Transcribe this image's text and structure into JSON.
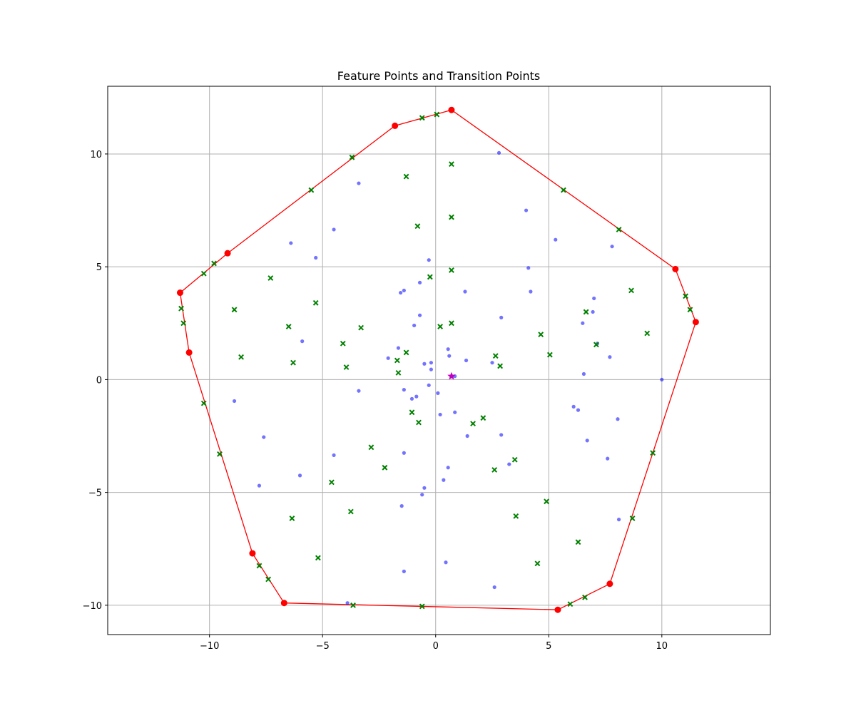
{
  "chart_data": {
    "type": "scatter",
    "title": "Feature Points and Transition Points",
    "xlabel": "",
    "ylabel": "",
    "xlim": [
      -14.5,
      14.8
    ],
    "ylim": [
      -11.3,
      13.0
    ],
    "xticks": [
      -10,
      -5,
      0,
      5,
      10
    ],
    "yticks": [
      -10,
      -5,
      0,
      5,
      10
    ],
    "grid": true,
    "colors": {
      "hull": "#ff0000",
      "feature_points": "#0000ff",
      "transition_points": "#008000",
      "centroid": "#bf00bf",
      "grid": "#b0b0b0"
    },
    "hull": [
      [
        0.7,
        11.95
      ],
      [
        -1.8,
        11.25
      ],
      [
        -9.2,
        5.6
      ],
      [
        -11.3,
        3.85
      ],
      [
        -10.9,
        1.2
      ],
      [
        -8.1,
        -7.7
      ],
      [
        -6.7,
        -9.9
      ],
      [
        5.4,
        -10.2
      ],
      [
        7.7,
        -9.05
      ],
      [
        11.5,
        2.55
      ],
      [
        10.6,
        4.9
      ],
      [
        0.7,
        11.95
      ]
    ],
    "feature_points": [
      [
        2.8,
        10.05
      ],
      [
        -3.4,
        8.7
      ],
      [
        -4.5,
        6.65
      ],
      [
        4.0,
        7.5
      ],
      [
        5.3,
        6.2
      ],
      [
        -6.4,
        6.05
      ],
      [
        -5.3,
        5.4
      ],
      [
        -0.3,
        5.3
      ],
      [
        4.1,
        4.95
      ],
      [
        7.8,
        5.9
      ],
      [
        -1.4,
        3.95
      ],
      [
        -1.55,
        3.85
      ],
      [
        -0.7,
        4.3
      ],
      [
        1.3,
        3.9
      ],
      [
        4.2,
        3.9
      ],
      [
        7.0,
        3.6
      ],
      [
        -0.7,
        2.85
      ],
      [
        2.9,
        2.75
      ],
      [
        -0.95,
        2.4
      ],
      [
        6.5,
        2.5
      ],
      [
        6.95,
        3.0
      ],
      [
        -5.9,
        1.7
      ],
      [
        7.15,
        1.6
      ],
      [
        -2.1,
        0.95
      ],
      [
        -1.65,
        1.4
      ],
      [
        0.6,
        1.05
      ],
      [
        0.55,
        1.35
      ],
      [
        1.35,
        0.85
      ],
      [
        2.5,
        0.75
      ],
      [
        7.7,
        1.0
      ],
      [
        -0.5,
        0.7
      ],
      [
        -0.2,
        0.75
      ],
      [
        -0.2,
        0.45
      ],
      [
        0.85,
        0.15
      ],
      [
        6.55,
        0.25
      ],
      [
        10.0,
        0.0
      ],
      [
        -0.3,
        -0.25
      ],
      [
        -1.4,
        -0.45
      ],
      [
        -3.4,
        -0.5
      ],
      [
        0.1,
        -0.6
      ],
      [
        -0.85,
        -0.75
      ],
      [
        -1.05,
        -0.85
      ],
      [
        -8.9,
        -0.95
      ],
      [
        6.1,
        -1.2
      ],
      [
        6.3,
        -1.35
      ],
      [
        0.85,
        -1.45
      ],
      [
        0.2,
        -1.55
      ],
      [
        8.05,
        -1.75
      ],
      [
        2.9,
        -2.45
      ],
      [
        1.4,
        -2.5
      ],
      [
        -7.6,
        -2.55
      ],
      [
        6.7,
        -2.7
      ],
      [
        -1.4,
        -3.25
      ],
      [
        -4.5,
        -3.35
      ],
      [
        7.6,
        -3.5
      ],
      [
        3.25,
        -3.75
      ],
      [
        0.55,
        -3.9
      ],
      [
        -6.0,
        -4.25
      ],
      [
        0.35,
        -4.45
      ],
      [
        -7.8,
        -4.7
      ],
      [
        -0.5,
        -4.8
      ],
      [
        -0.6,
        -5.1
      ],
      [
        -1.5,
        -5.6
      ],
      [
        8.1,
        -6.2
      ],
      [
        0.45,
        -8.1
      ],
      [
        -1.4,
        -8.5
      ],
      [
        2.6,
        -9.2
      ],
      [
        -3.9,
        -9.9
      ]
    ],
    "transition_points": [
      [
        0.05,
        11.75
      ],
      [
        -0.6,
        11.6
      ],
      [
        -3.7,
        9.85
      ],
      [
        0.7,
        9.55
      ],
      [
        -1.3,
        9.0
      ],
      [
        -5.5,
        8.4
      ],
      [
        5.65,
        8.4
      ],
      [
        0.7,
        7.2
      ],
      [
        -0.8,
        6.8
      ],
      [
        8.1,
        6.65
      ],
      [
        -9.8,
        5.15
      ],
      [
        -10.25,
        4.7
      ],
      [
        0.7,
        4.85
      ],
      [
        -0.25,
        4.55
      ],
      [
        -7.3,
        4.5
      ],
      [
        8.65,
        3.95
      ],
      [
        11.05,
        3.7
      ],
      [
        -5.3,
        3.4
      ],
      [
        -11.25,
        3.15
      ],
      [
        11.25,
        3.1
      ],
      [
        -8.9,
        3.1
      ],
      [
        6.65,
        3.0
      ],
      [
        -11.15,
        2.5
      ],
      [
        0.7,
        2.5
      ],
      [
        -6.5,
        2.35
      ],
      [
        0.2,
        2.35
      ],
      [
        -3.3,
        2.3
      ],
      [
        9.35,
        2.05
      ],
      [
        4.65,
        2.0
      ],
      [
        -4.1,
        1.6
      ],
      [
        7.1,
        1.55
      ],
      [
        -1.3,
        1.2
      ],
      [
        2.65,
        1.05
      ],
      [
        5.05,
        1.1
      ],
      [
        -8.6,
        1.0
      ],
      [
        -1.7,
        0.85
      ],
      [
        -6.3,
        0.75
      ],
      [
        2.85,
        0.6
      ],
      [
        -3.95,
        0.55
      ],
      [
        -1.65,
        0.3
      ],
      [
        -10.25,
        -1.05
      ],
      [
        -1.05,
        -1.45
      ],
      [
        2.1,
        -1.7
      ],
      [
        -0.75,
        -1.9
      ],
      [
        1.65,
        -1.95
      ],
      [
        -2.85,
        -3.0
      ],
      [
        9.6,
        -3.25
      ],
      [
        -9.55,
        -3.3
      ],
      [
        3.5,
        -3.55
      ],
      [
        -2.25,
        -3.9
      ],
      [
        2.6,
        -4.0
      ],
      [
        -4.6,
        -4.55
      ],
      [
        4.9,
        -5.4
      ],
      [
        -3.75,
        -5.85
      ],
      [
        3.55,
        -6.05
      ],
      [
        -6.35,
        -6.15
      ],
      [
        8.7,
        -6.15
      ],
      [
        6.3,
        -7.2
      ],
      [
        -5.2,
        -7.9
      ],
      [
        4.5,
        -8.15
      ],
      [
        -7.8,
        -8.25
      ],
      [
        -7.4,
        -8.85
      ],
      [
        6.6,
        -9.65
      ],
      [
        5.95,
        -9.95
      ],
      [
        -3.65,
        -10.0
      ],
      [
        -0.6,
        -10.05
      ]
    ],
    "centroid": [
      0.7,
      0.15
    ]
  }
}
